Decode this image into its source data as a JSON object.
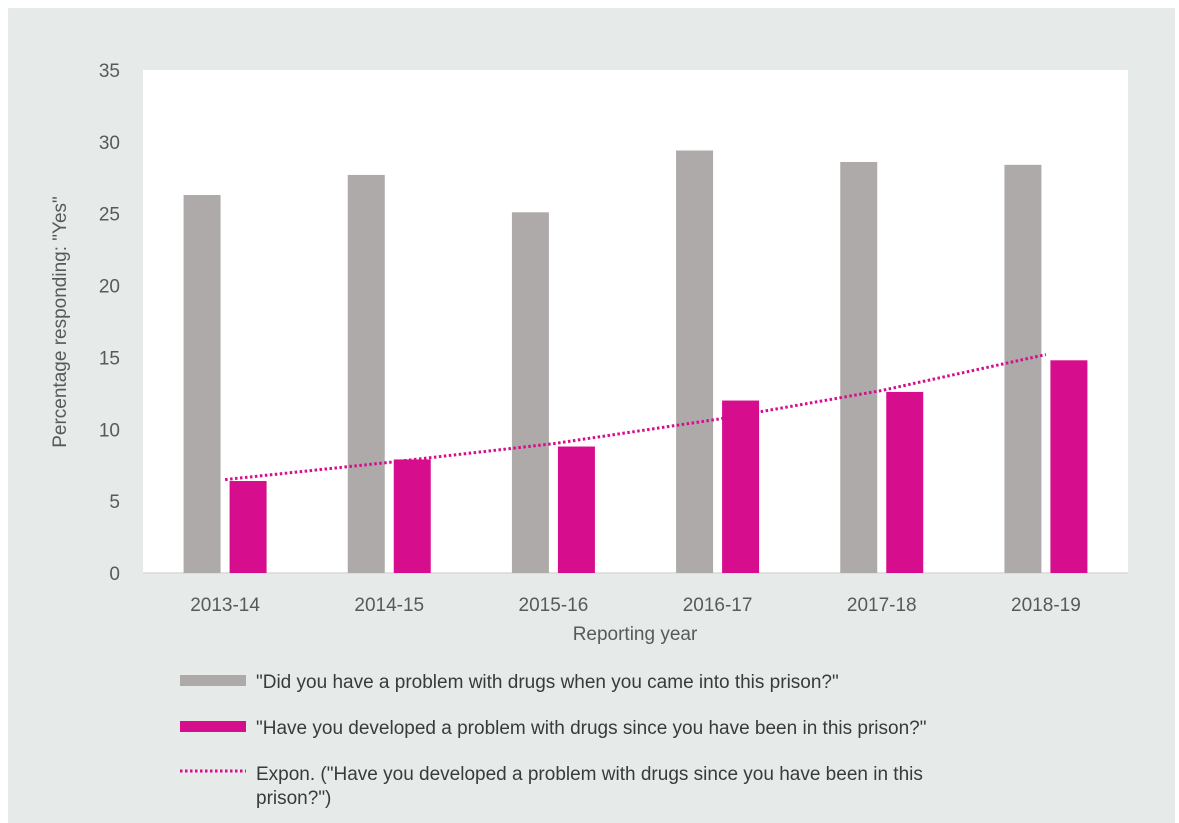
{
  "chart_data": {
    "type": "bar",
    "categories": [
      "2013-14",
      "2014-15",
      "2015-16",
      "2016-17",
      "2017-18",
      "2018-19"
    ],
    "series": [
      {
        "name": "\"Did you have a problem with drugs when you came into this prison?\"",
        "values": [
          26.3,
          27.7,
          25.1,
          29.4,
          28.6,
          28.4
        ],
        "color": "#aeaaaa"
      },
      {
        "name": "\"Have you developed a problem with drugs since you have been in this prison?\"",
        "values": [
          6.4,
          7.9,
          8.8,
          12.0,
          12.6,
          14.8
        ],
        "color": "#d60d8c"
      }
    ],
    "trendline": {
      "name": "Expon. (\"Have you developed a problem with drugs since you have been in this prison?\")",
      "type": "exponential",
      "values": [
        6.5,
        7.7,
        9.0,
        10.7,
        12.7,
        15.2
      ],
      "color": "#d60d8c"
    },
    "xlabel": "Reporting year",
    "ylabel": "Percentage responding: \"Yes\"",
    "ylim": [
      0,
      35
    ],
    "yticks": [
      "0",
      "5",
      "10",
      "15",
      "20",
      "25",
      "30",
      "35"
    ],
    "grid": false,
    "legend_position": "bottom"
  }
}
